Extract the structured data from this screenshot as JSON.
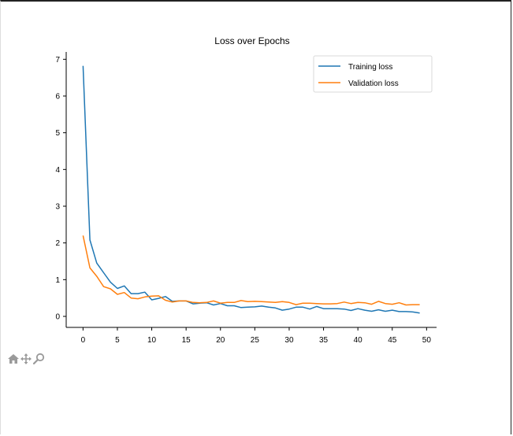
{
  "chart_data": {
    "type": "line",
    "title": "Loss over Epochs",
    "xlabel": "",
    "ylabel": "",
    "xlim": [
      -2.45,
      51.45
    ],
    "ylim": [
      -0.3,
      7.2
    ],
    "xticks": [
      "0",
      "5",
      "10",
      "15",
      "20",
      "25",
      "30",
      "35",
      "40",
      "45",
      "50"
    ],
    "yticks": [
      "0",
      "1",
      "2",
      "3",
      "4",
      "5",
      "6",
      "7"
    ],
    "grid": false,
    "legend_position": "top-right",
    "x": [
      0,
      1,
      2,
      3,
      4,
      5,
      6,
      7,
      8,
      9,
      10,
      11,
      12,
      13,
      14,
      15,
      16,
      17,
      18,
      19,
      20,
      21,
      22,
      23,
      24,
      25,
      26,
      27,
      28,
      29,
      30,
      31,
      32,
      33,
      34,
      35,
      36,
      37,
      38,
      39,
      40,
      41,
      42,
      43,
      44,
      45,
      46,
      47,
      48,
      49
    ],
    "series": [
      {
        "name": "Training loss",
        "color": "#1f77b4",
        "values": [
          6.82,
          2.08,
          1.45,
          1.19,
          0.93,
          0.76,
          0.83,
          0.62,
          0.62,
          0.66,
          0.45,
          0.49,
          0.54,
          0.41,
          0.42,
          0.42,
          0.34,
          0.36,
          0.37,
          0.31,
          0.35,
          0.29,
          0.29,
          0.24,
          0.25,
          0.26,
          0.28,
          0.25,
          0.23,
          0.17,
          0.2,
          0.25,
          0.25,
          0.2,
          0.27,
          0.21,
          0.21,
          0.21,
          0.2,
          0.16,
          0.21,
          0.17,
          0.14,
          0.18,
          0.14,
          0.17,
          0.13,
          0.13,
          0.12,
          0.09
        ]
      },
      {
        "name": "Validation loss",
        "color": "#ff7f0e",
        "values": [
          2.2,
          1.32,
          1.09,
          0.81,
          0.75,
          0.6,
          0.65,
          0.5,
          0.48,
          0.53,
          0.55,
          0.56,
          0.44,
          0.39,
          0.42,
          0.42,
          0.38,
          0.37,
          0.38,
          0.42,
          0.36,
          0.38,
          0.38,
          0.43,
          0.4,
          0.41,
          0.4,
          0.39,
          0.38,
          0.4,
          0.38,
          0.32,
          0.36,
          0.36,
          0.35,
          0.34,
          0.34,
          0.35,
          0.39,
          0.35,
          0.38,
          0.37,
          0.33,
          0.41,
          0.35,
          0.33,
          0.37,
          0.31,
          0.32,
          0.32
        ]
      }
    ]
  },
  "toolbar": {
    "home_icon": "home-icon",
    "pan_icon": "pan-icon",
    "zoom_icon": "zoom-icon",
    "icon_color": "#999999"
  }
}
